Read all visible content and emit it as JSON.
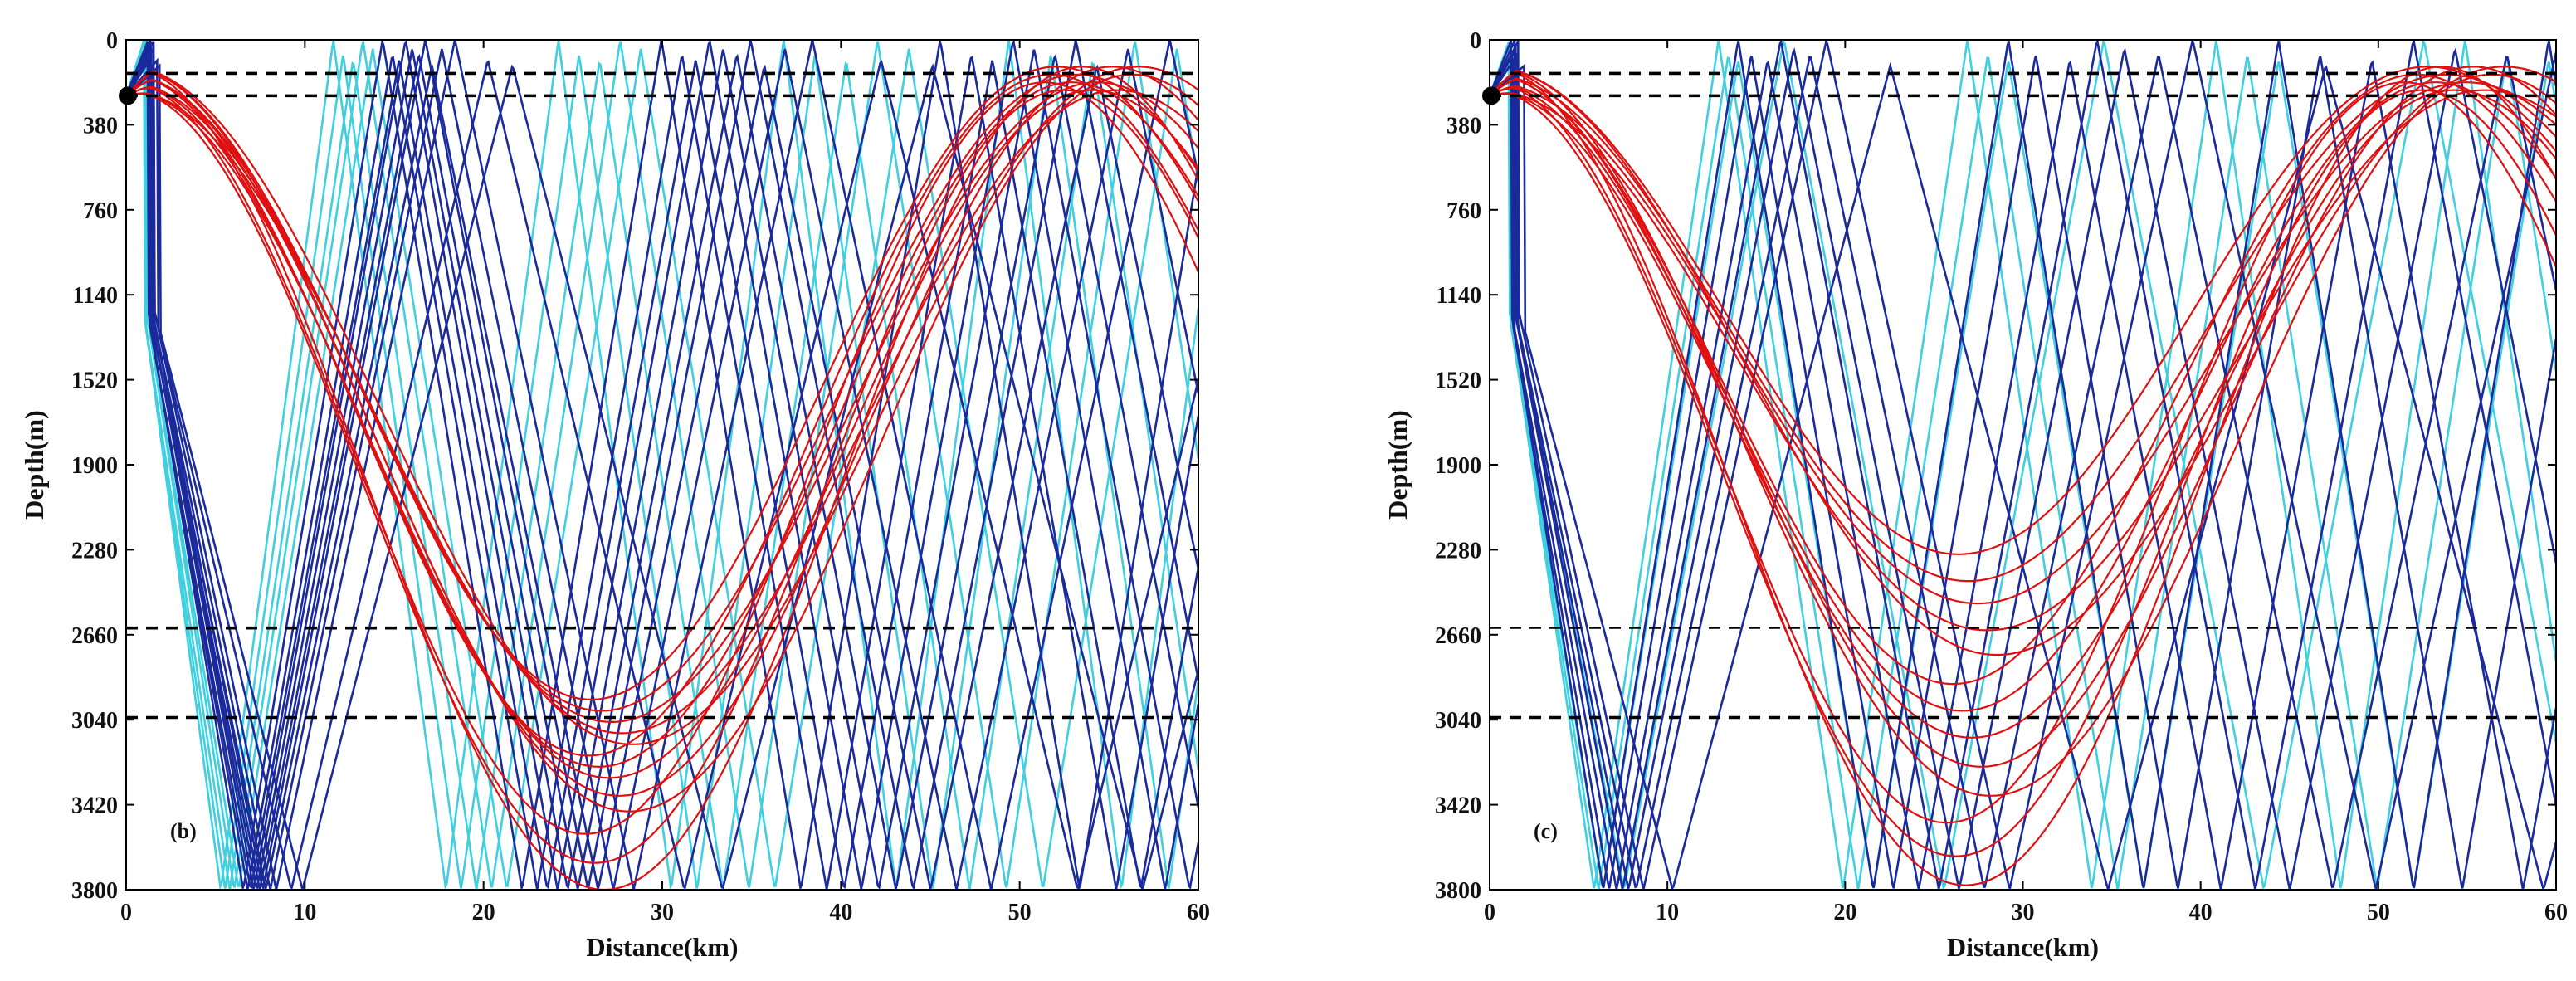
{
  "chart_data": [
    {
      "type": "line",
      "panel_label": "(b)",
      "xlabel": "Distance(km)",
      "ylabel": "Depth(m)",
      "xlim": [
        0,
        60
      ],
      "ylim": [
        0,
        3800
      ],
      "y_inverted": true,
      "xticks": [
        0,
        10,
        20,
        30,
        40,
        50,
        60
      ],
      "yticks": [
        0,
        380,
        760,
        1140,
        1520,
        1900,
        2280,
        2660,
        3040,
        3420,
        3800
      ],
      "source": {
        "x": 0,
        "depth": 250
      },
      "reference_lines": [
        {
          "depth": 150,
          "style": "dashed",
          "color": "#000000"
        },
        {
          "depth": 250,
          "style": "dashed",
          "color": "#000000"
        },
        {
          "depth": 2630,
          "style": "dashed",
          "color": "#000000"
        },
        {
          "depth": 3030,
          "style": "dashed",
          "color": "#000000"
        }
      ],
      "series": [
        {
          "name": "surface-reflected rays (cyan)",
          "color": "#3fd0e0",
          "kind": "bounce",
          "half_periods_km": [
            12.6,
            13.2,
            13.8,
            14.4,
            15.0
          ]
        },
        {
          "name": "surface/bottom reflected rays (blue)",
          "color": "#1a2a9c",
          "kind": "bounce",
          "half_periods_km": [
            15.6,
            16.2,
            16.6,
            17.0,
            17.4,
            17.8,
            18.2,
            18.6,
            19.2,
            20.0,
            22.0,
            23.5
          ]
        },
        {
          "name": "refracted rays (red)",
          "color": "#e01010",
          "kind": "refracted",
          "turning_depths_m": [
            2950,
            3000,
            3050,
            3100,
            3150,
            3200,
            3250,
            3300,
            3380,
            3450,
            3550,
            3680,
            3800
          ]
        }
      ]
    },
    {
      "type": "line",
      "panel_label": "(c)",
      "xlabel": "Distance(km)",
      "ylabel": "Depth(m)",
      "xlim": [
        0,
        60
      ],
      "ylim": [
        0,
        3800
      ],
      "y_inverted": true,
      "xticks": [
        0,
        10,
        20,
        30,
        40,
        50,
        60
      ],
      "yticks": [
        0,
        380,
        760,
        1140,
        1520,
        1900,
        2280,
        2660,
        3040,
        3420,
        3800
      ],
      "source": {
        "x": 0,
        "depth": 250
      },
      "reference_lines": [
        {
          "depth": 150,
          "style": "dashed",
          "color": "#000000"
        },
        {
          "depth": 250,
          "style": "dashed",
          "color": "#000000"
        },
        {
          "depth": 2630,
          "style": "dashed",
          "color": "#000000"
        },
        {
          "depth": 3030,
          "style": "dashed",
          "color": "#000000"
        }
      ],
      "series": [
        {
          "name": "surface-reflected rays (cyan)",
          "color": "#3fd0e0",
          "kind": "bounce",
          "half_periods_km": [
            14.0,
            14.6,
            15.2,
            18.0
          ]
        },
        {
          "name": "surface/bottom reflected rays (blue)",
          "color": "#1a2a9c",
          "kind": "bounce",
          "half_periods_km": [
            15.2,
            16.0,
            17.0,
            17.8,
            18.6,
            19.6,
            20.6,
            24.5
          ]
        },
        {
          "name": "refracted rays (red)",
          "color": "#e01010",
          "kind": "refracted",
          "turning_depths_m": [
            2300,
            2420,
            2520,
            2640,
            2750,
            2880,
            3000,
            3120,
            3250,
            3380,
            3500,
            3650,
            3780
          ]
        }
      ]
    }
  ]
}
